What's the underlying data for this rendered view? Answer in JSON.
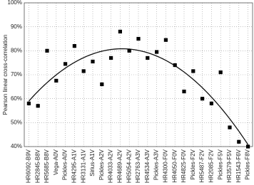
{
  "chart_data": {
    "type": "scatter",
    "y_label": "Pearson linear cross-correlation",
    "categories": [
      "HR6092-B9V",
      "HR2845-B8V",
      "HR5685-B8V",
      "Vega-A0V",
      "Pickles-A0V",
      "HR4295-A1V",
      "HR3131-A1V",
      "Sirius-A1V",
      "Pickles-A2V",
      "HR4033-A2V",
      "HR4689-A2V",
      "HR5054-A2V",
      "HR2763-A3V",
      "HR4534-A3V",
      "Pickles-A3V",
      "HR4300-F0V",
      "HR4050-F0V",
      "HR4825-F0V",
      "Pickles-F2V",
      "HR5487-F2V",
      "HR2085-F2V",
      "Pickles-F5V",
      "HR3579-F5V",
      "HR1543-F6V",
      "Pickles-F8V"
    ],
    "values": [
      58,
      57,
      80,
      67.5,
      74.5,
      82,
      71.5,
      75.5,
      66,
      77,
      88,
      80,
      85,
      77,
      79.5,
      84.5,
      74,
      63,
      71.5,
      60,
      58,
      71,
      48,
      42,
      40
    ],
    "color": "#000000",
    "ylim": [
      40,
      100
    ],
    "yticks": [
      {
        "value": 40,
        "label": "40%"
      },
      {
        "value": 50,
        "label": "50%"
      },
      {
        "value": 60,
        "label": "60%"
      },
      {
        "value": 70,
        "label": "70%"
      },
      {
        "value": 80,
        "label": "80%"
      },
      {
        "value": 90,
        "label": "90%"
      },
      {
        "value": 100,
        "label": "100%"
      }
    ],
    "grid": true,
    "trendline": "quadratic"
  }
}
